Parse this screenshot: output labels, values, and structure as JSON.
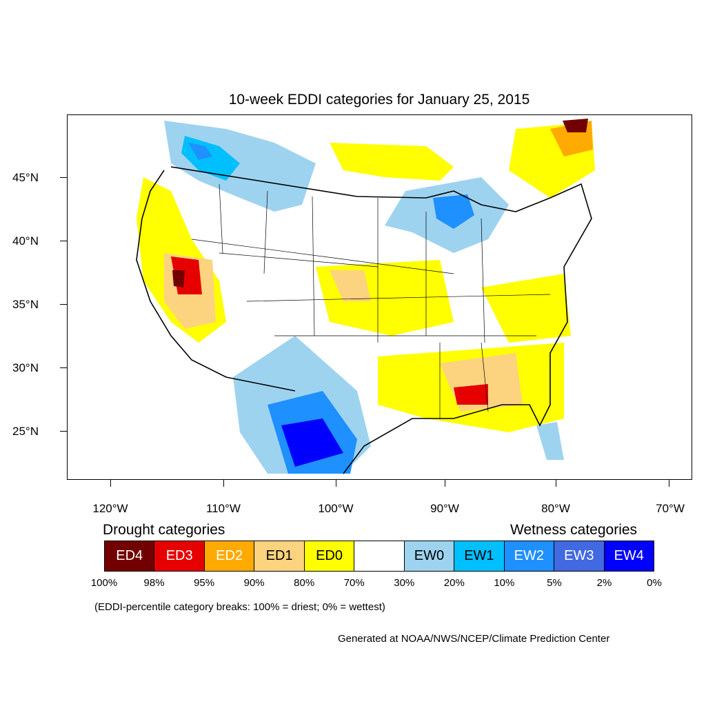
{
  "title": "10-week EDDI categories for January 25, 2015",
  "y_axis_labels": [
    "45°N",
    "40°N",
    "35°N",
    "30°N",
    "25°N"
  ],
  "x_axis_labels": [
    "120°W",
    "110°W",
    "100°W",
    "90°W",
    "80°W",
    "70°W"
  ],
  "legend": {
    "drought_heading": "Drought categories",
    "wetness_heading": "Wetness categories",
    "categories": [
      {
        "label": "ED4",
        "color": "#730000",
        "text_color": "#ffffff"
      },
      {
        "label": "ED3",
        "color": "#e60000",
        "text_color": "#ffffff"
      },
      {
        "label": "ED2",
        "color": "#ffaa00",
        "text_color": "#ffffff"
      },
      {
        "label": "ED1",
        "color": "#fcd37f",
        "text_color": "#000000"
      },
      {
        "label": "ED0",
        "color": "#ffff00",
        "text_color": "#000000"
      },
      {
        "label": "",
        "color": "#ffffff",
        "text_color": "#000000"
      },
      {
        "label": "EW0",
        "color": "#9ed3f0",
        "text_color": "#000000"
      },
      {
        "label": "EW1",
        "color": "#00bfff",
        "text_color": "#000000"
      },
      {
        "label": "EW2",
        "color": "#1e90ff",
        "text_color": "#ffffff"
      },
      {
        "label": "EW3",
        "color": "#4169e1",
        "text_color": "#ffffff"
      },
      {
        "label": "EW4",
        "color": "#0000ff",
        "text_color": "#ffffff"
      }
    ],
    "percentiles": [
      "100%",
      "98%",
      "95%",
      "90%",
      "80%",
      "70%",
      "30%",
      "20%",
      "10%",
      "5%",
      "2%",
      "0%"
    ]
  },
  "note": "(EDDI-percentile category breaks: 100% = driest; 0% = wettest)",
  "credit": "Generated at NOAA/NWS/NCEP/Climate Prediction Center"
}
